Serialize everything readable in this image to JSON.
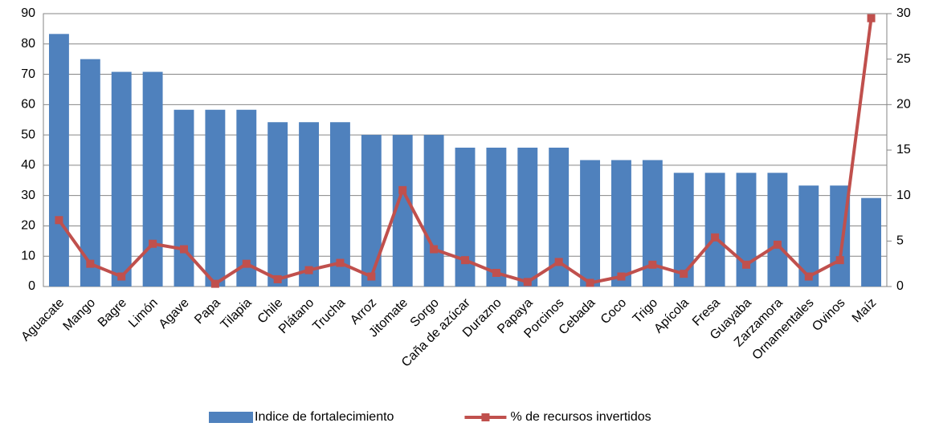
{
  "chart_data": {
    "type": "bar_line",
    "categories": [
      "Aguacate",
      "Mango",
      "Bagre",
      "Limón",
      "Agave",
      "Papa",
      "Tilapia",
      "Chile",
      "Plátano",
      "Trucha",
      "Arroz",
      "Jitomate",
      "Sorgo",
      "Caña de azúcar",
      "Durazno",
      "Papaya",
      "Porcinos",
      "Cebada",
      "Coco",
      "Trigo",
      "Apícola",
      "Fresa",
      "Guayaba",
      "Zarzamora",
      "Ornamentales",
      "Ovinos",
      "Maíz"
    ],
    "series": [
      {
        "name": "Indice de fortalecimiento",
        "type": "bar",
        "color": "#4f81bd",
        "axis": "y",
        "values": [
          83.3,
          75,
          70.8,
          70.8,
          58.3,
          58.3,
          58.3,
          54.2,
          54.2,
          54.2,
          50,
          50,
          50,
          45.8,
          45.8,
          45.8,
          45.8,
          41.7,
          41.7,
          41.7,
          37.5,
          37.5,
          37.5,
          37.5,
          33.3,
          33.3,
          29.2
        ]
      },
      {
        "name": "% de recursos invertidos",
        "type": "line",
        "color": "#c0504d",
        "axis": "y2",
        "values": [
          7.3,
          2.5,
          1.1,
          4.7,
          4.1,
          0.3,
          2.5,
          0.8,
          1.8,
          2.6,
          1.1,
          10.6,
          4.1,
          2.9,
          1.5,
          0.5,
          2.7,
          0.4,
          1.1,
          2.4,
          1.4,
          5.4,
          2.4,
          4.6,
          1.1,
          2.9,
          29.5
        ]
      }
    ],
    "ylim": [
      0,
      90
    ],
    "yticks": [
      0,
      10,
      20,
      30,
      40,
      50,
      60,
      70,
      80,
      90
    ],
    "y2lim": [
      0,
      30
    ],
    "y2ticks": [
      0,
      5,
      10,
      15,
      20,
      25,
      30
    ],
    "grid": true,
    "legend": "bottom"
  }
}
